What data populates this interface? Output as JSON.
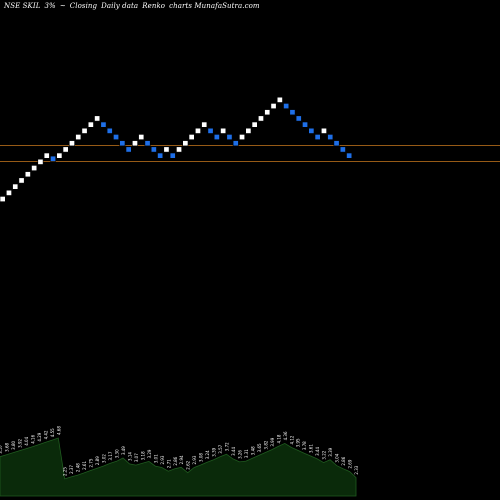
{
  "header": {
    "symbol": "NSE SKIL",
    "percent": "3%",
    "glyph": "~",
    "mode": "Closing",
    "frequency": "Daily data",
    "style": "Renko",
    "tail": "charts MunafaSutra.com"
  },
  "colors": {
    "background": "#000000",
    "up_brick": "#ffffff",
    "down_brick": "#1e6fe8",
    "level_line": "#c8781e",
    "volume_fill": "#0a2a0a",
    "volume_stroke": "#1f5a1f"
  },
  "chart_data": {
    "type": "renko",
    "brick_size_percent": 3,
    "levels": [
      1.0,
      0.0
    ],
    "bricks": [
      {
        "level": -7,
        "dir": "up"
      },
      {
        "level": -6,
        "dir": "up"
      },
      {
        "level": -5,
        "dir": "up"
      },
      {
        "level": -4,
        "dir": "up"
      },
      {
        "level": -3,
        "dir": "up"
      },
      {
        "level": -2,
        "dir": "up"
      },
      {
        "level": -1,
        "dir": "up"
      },
      {
        "level": 0,
        "dir": "up"
      },
      {
        "level": -0.5,
        "dir": "down"
      },
      {
        "level": 0,
        "dir": "up"
      },
      {
        "level": 1,
        "dir": "up"
      },
      {
        "level": 2,
        "dir": "up"
      },
      {
        "level": 3,
        "dir": "up"
      },
      {
        "level": 4,
        "dir": "up"
      },
      {
        "level": 5,
        "dir": "up"
      },
      {
        "level": 6,
        "dir": "up"
      },
      {
        "level": 5,
        "dir": "down"
      },
      {
        "level": 4,
        "dir": "down"
      },
      {
        "level": 3,
        "dir": "down"
      },
      {
        "level": 2,
        "dir": "down"
      },
      {
        "level": 1,
        "dir": "down"
      },
      {
        "level": 2,
        "dir": "up"
      },
      {
        "level": 3,
        "dir": "up"
      },
      {
        "level": 2,
        "dir": "down"
      },
      {
        "level": 1,
        "dir": "down"
      },
      {
        "level": 0,
        "dir": "down"
      },
      {
        "level": 1,
        "dir": "up"
      },
      {
        "level": 0,
        "dir": "down"
      },
      {
        "level": 1,
        "dir": "up"
      },
      {
        "level": 2,
        "dir": "up"
      },
      {
        "level": 3,
        "dir": "up"
      },
      {
        "level": 4,
        "dir": "up"
      },
      {
        "level": 5,
        "dir": "up"
      },
      {
        "level": 4,
        "dir": "down"
      },
      {
        "level": 3,
        "dir": "down"
      },
      {
        "level": 4,
        "dir": "up"
      },
      {
        "level": 3,
        "dir": "down"
      },
      {
        "level": 2,
        "dir": "down"
      },
      {
        "level": 3,
        "dir": "up"
      },
      {
        "level": 4,
        "dir": "up"
      },
      {
        "level": 5,
        "dir": "up"
      },
      {
        "level": 6,
        "dir": "up"
      },
      {
        "level": 7,
        "dir": "up"
      },
      {
        "level": 8,
        "dir": "up"
      },
      {
        "level": 9,
        "dir": "up"
      },
      {
        "level": 8,
        "dir": "down"
      },
      {
        "level": 7,
        "dir": "down"
      },
      {
        "level": 6,
        "dir": "down"
      },
      {
        "level": 5,
        "dir": "down"
      },
      {
        "level": 4,
        "dir": "down"
      },
      {
        "level": 3,
        "dir": "down"
      },
      {
        "level": 4,
        "dir": "up"
      },
      {
        "level": 3,
        "dir": "down"
      },
      {
        "level": 2,
        "dir": "down"
      },
      {
        "level": 1,
        "dir": "down"
      },
      {
        "level": 0,
        "dir": "down"
      }
    ],
    "volume_labels": [
      "3.57",
      "3.68",
      "3.80",
      "3.92",
      "4.04",
      "4.16",
      "4.29",
      "4.42",
      "4.55",
      "4.68",
      "2.25",
      "2.37",
      "2.48",
      "2.61",
      "2.75",
      "2.89",
      "3.02",
      "3.17",
      "3.30",
      "3.49",
      "3.14",
      "3.07",
      "3.18",
      "3.29",
      "3.01",
      "2.93",
      "2.71",
      "2.86",
      "2.94",
      "2.62",
      "2.93",
      "3.08",
      "3.24",
      "3.39",
      "3.57",
      "3.72",
      "3.44",
      "3.26",
      "3.31",
      "3.48",
      "3.65",
      "3.82",
      "3.99",
      "4.18",
      "4.36",
      "4.12",
      "3.95",
      "3.78",
      "3.61",
      "3.44",
      "3.22",
      "3.39",
      "3.04",
      "2.86",
      "2.69",
      "2.33"
    ]
  }
}
